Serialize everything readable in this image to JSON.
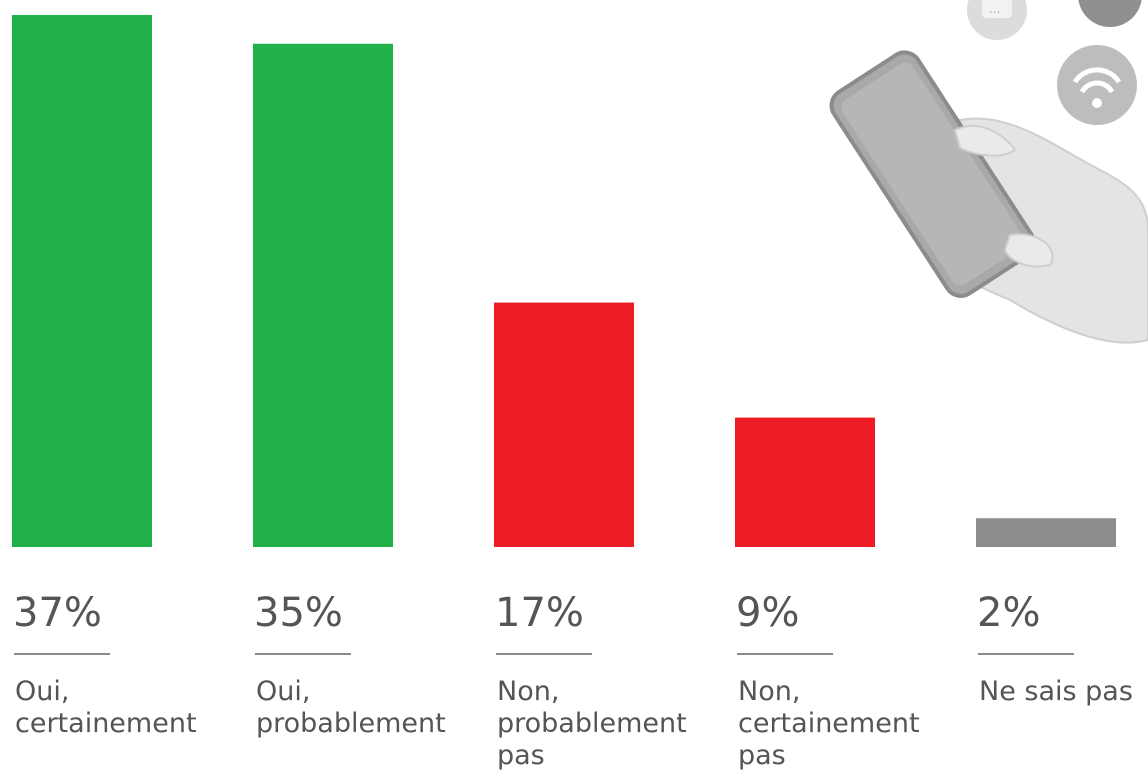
{
  "chart_data": {
    "type": "bar",
    "categories": [
      [
        "Oui,",
        "certainement"
      ],
      [
        "Oui,",
        "probablement"
      ],
      [
        "Non,",
        "probablement",
        "pas"
      ],
      [
        "Non,",
        "certainement",
        "pas"
      ],
      [
        "Ne sais pas"
      ]
    ],
    "values": [
      37,
      35,
      17,
      9,
      2
    ],
    "value_labels": [
      "37%",
      "35%",
      "17%",
      "9%",
      "2%"
    ],
    "bar_colors": [
      "#22b04b",
      "#22b04b",
      "#ed1c24",
      "#ed1c24",
      "#8c8c8c"
    ],
    "ylim": [
      0,
      37
    ],
    "grid": false,
    "legend": "none",
    "decoration": "hand-holding-phone-icon"
  }
}
